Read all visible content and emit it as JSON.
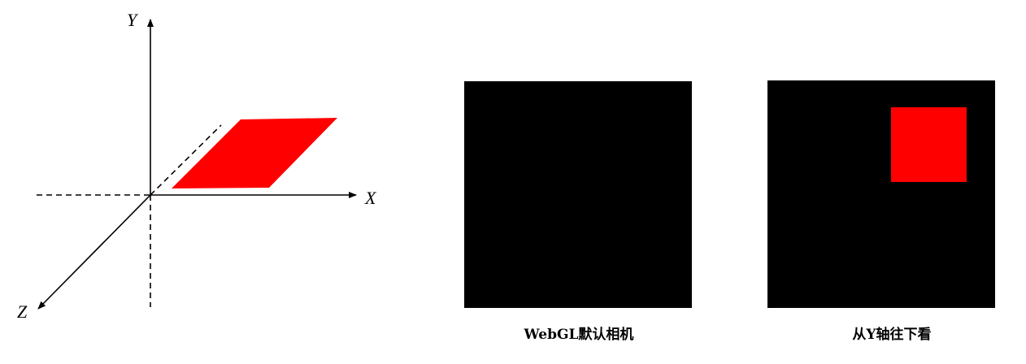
{
  "axes": {
    "x_label": "X",
    "y_label": "Y",
    "z_label": "Z"
  },
  "views": [
    {
      "caption": "WebGL默认相机"
    },
    {
      "caption": "从Y轴往下看"
    }
  ],
  "colors": {
    "plane": "#ff0000",
    "view_background": "#000000",
    "axis": "#000000"
  }
}
